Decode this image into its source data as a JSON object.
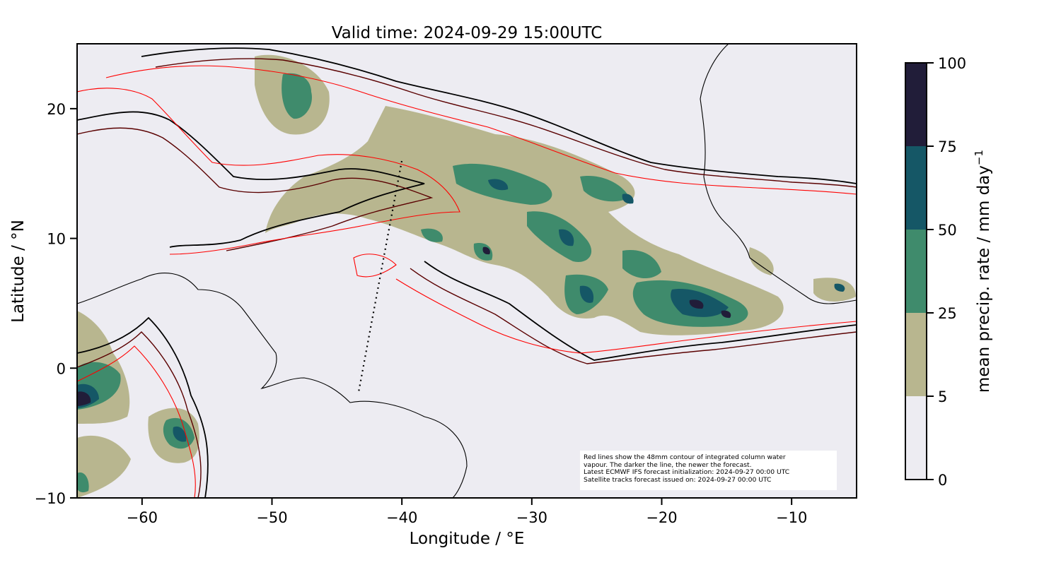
{
  "map": {
    "title": "Valid time: 2024-09-29 15:00UTC",
    "xlabel": "Longitude / °E",
    "ylabel": "Latitude / °N",
    "xlim": [
      -65,
      -5
    ],
    "ylim": [
      -10,
      25
    ],
    "xticks": [
      -60,
      -50,
      -40,
      -30,
      -20,
      -10
    ],
    "yticks": [
      -10,
      0,
      10,
      20
    ],
    "colorbar": {
      "label": "mean precip. rate / mm day",
      "label_superscript": "−1",
      "levels": [
        0,
        5,
        25,
        50,
        75,
        100
      ],
      "colors": [
        "#edecf2",
        "#b8b68f",
        "#3f8b6c",
        "#155766",
        "#211d39"
      ]
    },
    "note_lines": [
      "Red lines show the 48mm contour of integrated column water",
      "vapour. The darker the line, the newer the forecast.",
      "Latest ECMWF IFS forecast initialization: 2024-09-27 00:00 UTC",
      "Satellite tracks forecast issued on: 2024-09-27 00:00 UTC"
    ],
    "background_color": "#edecf2",
    "line_colors": [
      "#000000",
      "#5a0000",
      "#ff0000"
    ]
  }
}
